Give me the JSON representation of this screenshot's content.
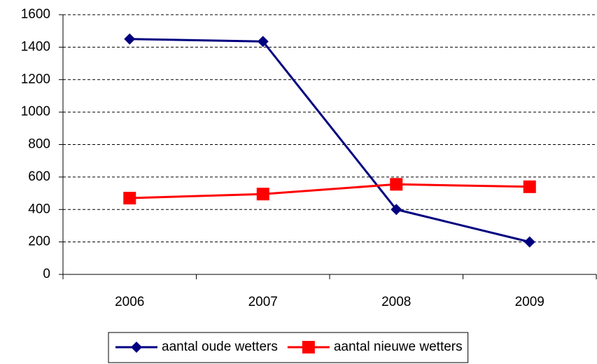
{
  "chart_data": {
    "type": "line",
    "categories": [
      "2006",
      "2007",
      "2008",
      "2009"
    ],
    "series": [
      {
        "name": "aantal oude wetters",
        "color": "#000080",
        "marker": "diamond",
        "values": [
          1450,
          1435,
          400,
          200
        ]
      },
      {
        "name": "aantal nieuwe wetters",
        "color": "#ff0000",
        "marker": "square",
        "values": [
          470,
          495,
          555,
          540
        ]
      }
    ],
    "ylim": [
      0,
      1600
    ],
    "yticks": [
      0,
      200,
      400,
      600,
      800,
      1000,
      1200,
      1400,
      1600
    ],
    "grid": true,
    "legend": "bottom"
  }
}
